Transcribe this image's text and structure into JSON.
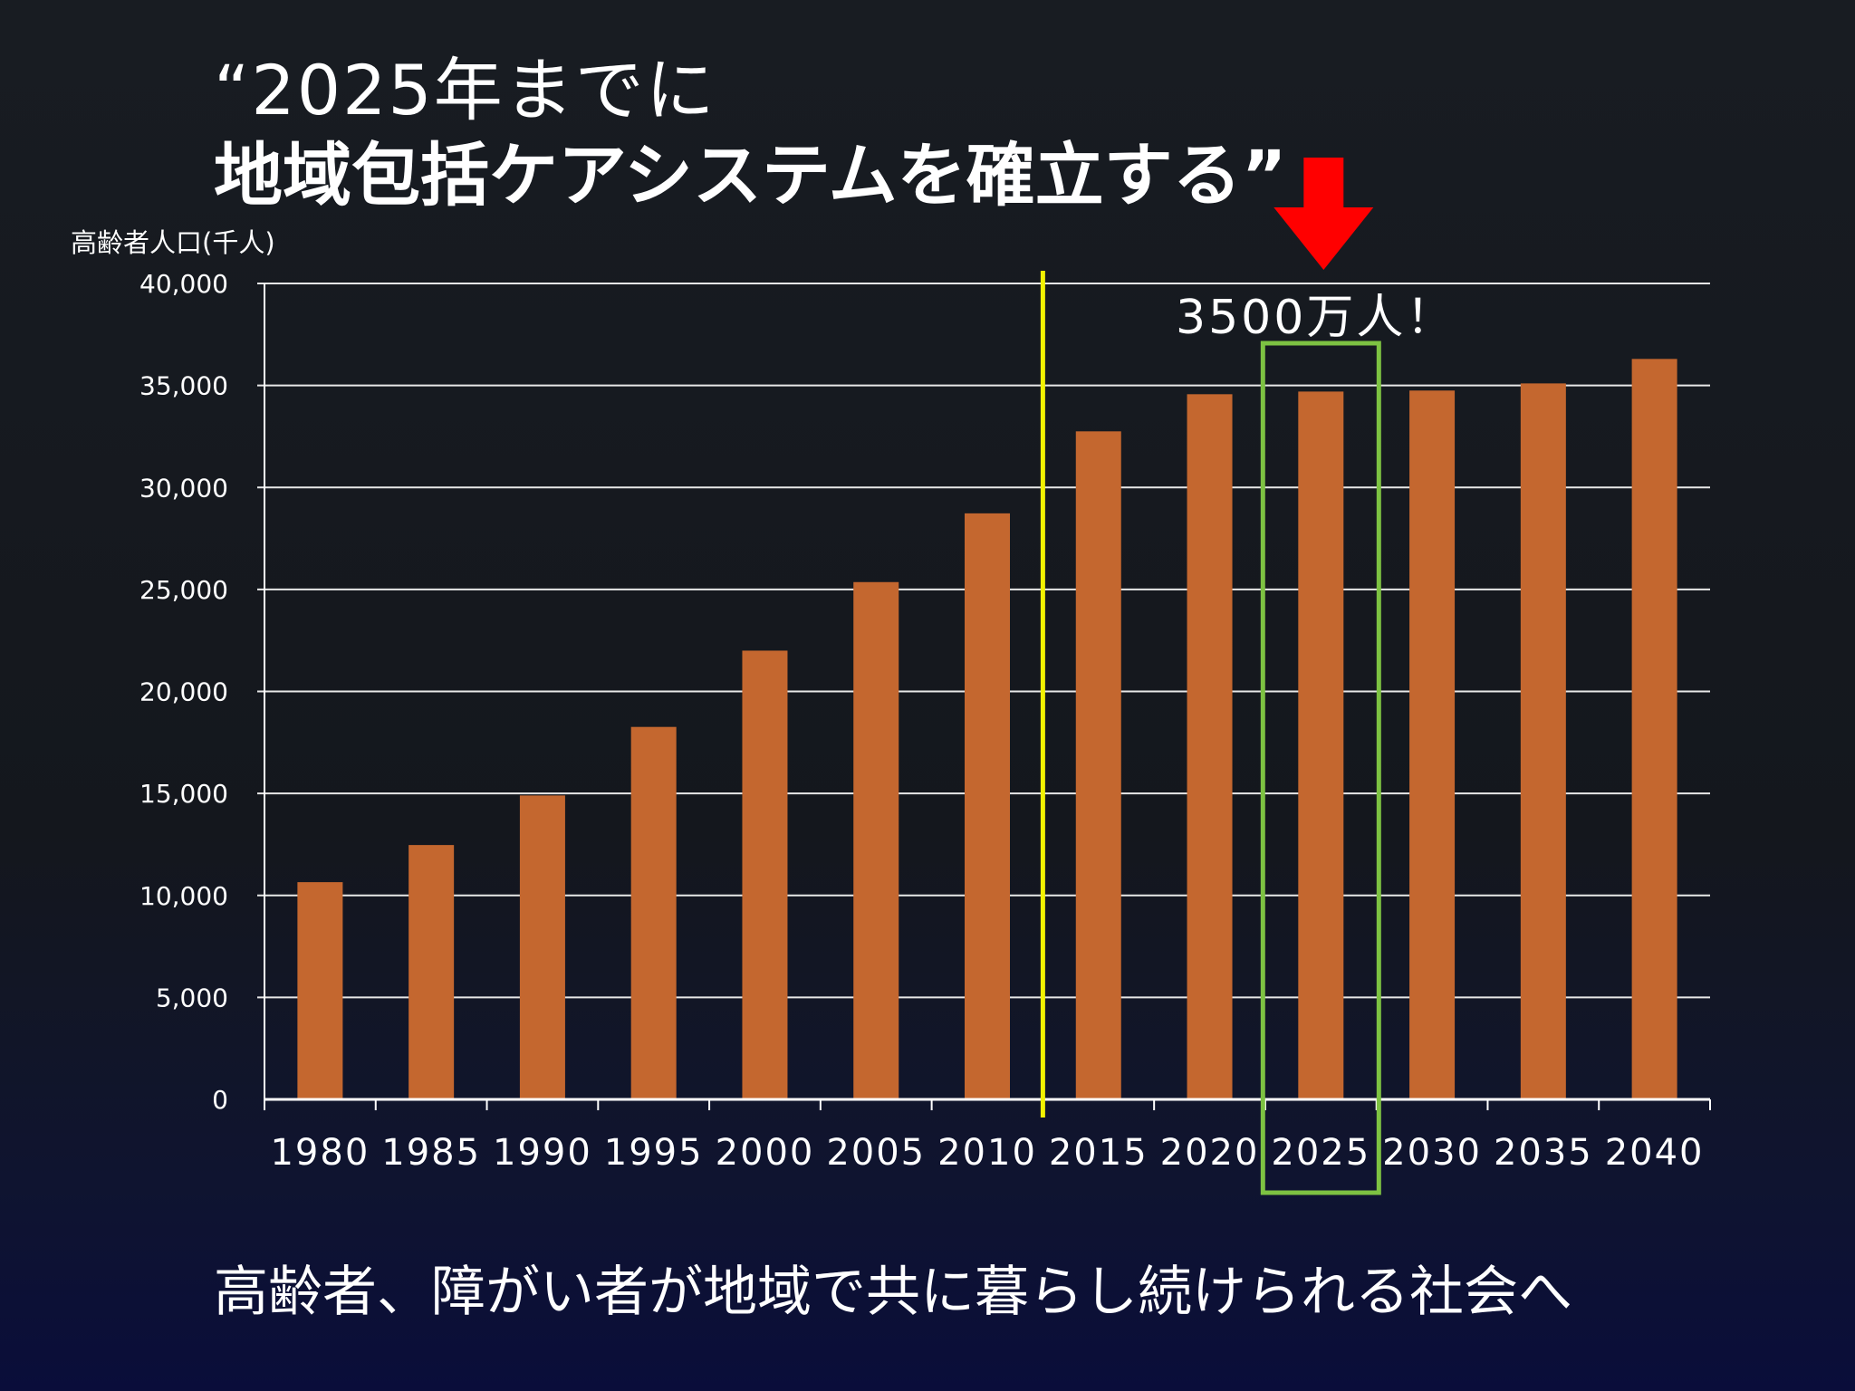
{
  "title": {
    "line1": "“2025年までに",
    "line2": "地域包括ケアシステムを確立する”"
  },
  "footer": "高齢者、障がい者が地域で共に暮らし続けられる社会へ",
  "callout": "3500万人！",
  "colors": {
    "bar": "#c4672f",
    "highlight_box": "#7dc242",
    "divider_line": "#f2f200",
    "arrow": "#ff0000",
    "grid": "#e8e8e8"
  },
  "chart_data": {
    "type": "bar",
    "ylabel": "高齢者人口(千人)",
    "xlabel": "",
    "categories": [
      "1980",
      "1985",
      "1990",
      "1995",
      "2000",
      "2005",
      "2010",
      "2015",
      "2020",
      "2025",
      "2030",
      "2035",
      "2040"
    ],
    "values": [
      10650,
      12470,
      14900,
      18260,
      22000,
      25360,
      28730,
      32750,
      34570,
      34700,
      34750,
      35100,
      36300
    ],
    "ylim": [
      0,
      40000
    ],
    "yticks": [
      0,
      5000,
      10000,
      15000,
      20000,
      25000,
      30000,
      35000,
      40000
    ],
    "ytick_labels": [
      "0",
      "5,000",
      "10,000",
      "15,000",
      "20,000",
      "25,000",
      "30,000",
      "35,000",
      "40,000"
    ],
    "highlight_category": "2025",
    "divider_between": [
      "2010",
      "2015"
    ],
    "grid": true,
    "legend": "none"
  }
}
